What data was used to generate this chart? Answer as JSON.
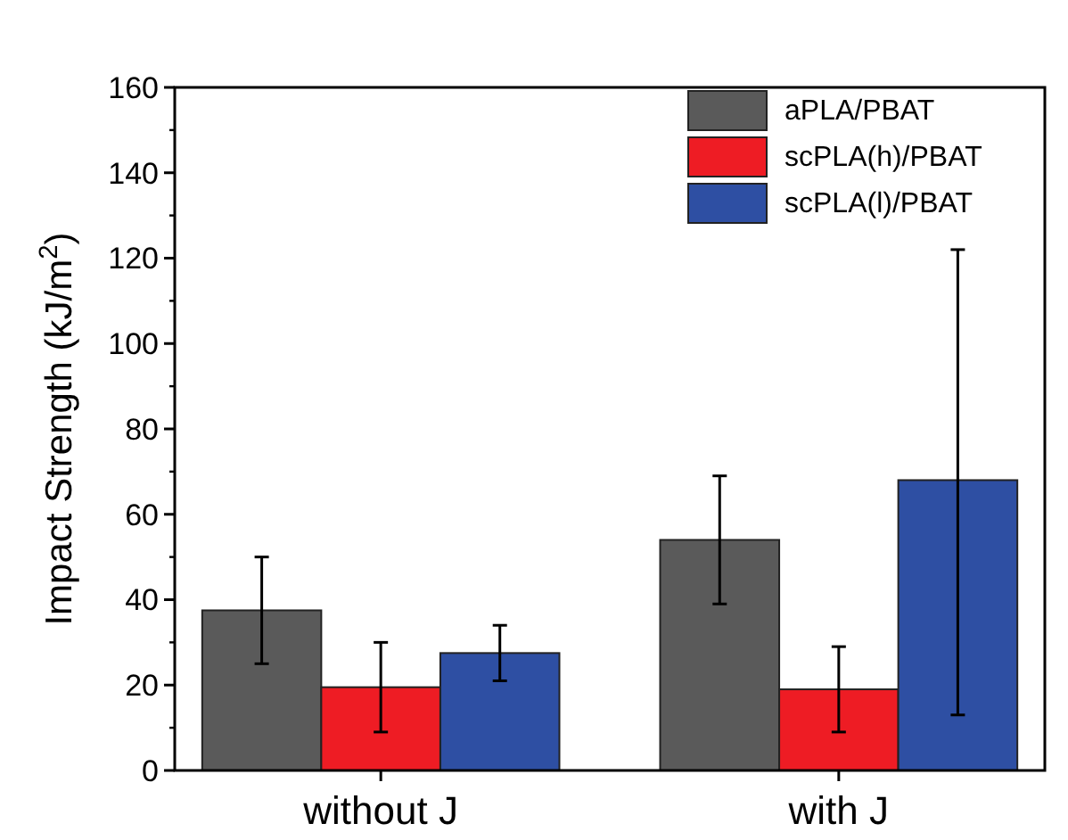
{
  "chart_data": {
    "type": "bar",
    "ylabel": "Impact Strength (kJ/m$^{2}$)",
    "categories": [
      "without J",
      "with J"
    ],
    "series": [
      {
        "name": "aPLA/PBAT",
        "color": "#5a5a5a",
        "values": [
          37.5,
          54
        ],
        "errors": [
          [
            25,
            50
          ],
          [
            39,
            69
          ]
        ]
      },
      {
        "name": "scPLA(h)/PBAT",
        "color": "#ee1c24",
        "values": [
          19.5,
          19
        ],
        "errors": [
          [
            9,
            30
          ],
          [
            9,
            29
          ]
        ]
      },
      {
        "name": "scPLA(l)/PBAT",
        "color": "#2e4fa3",
        "values": [
          27.5,
          68
        ],
        "errors": [
          [
            21,
            34
          ],
          [
            13,
            122
          ]
        ]
      }
    ],
    "ylim": [
      0,
      160
    ],
    "yticks": [
      0,
      20,
      40,
      60,
      80,
      100,
      120,
      140,
      160
    ],
    "legend": "top right"
  }
}
